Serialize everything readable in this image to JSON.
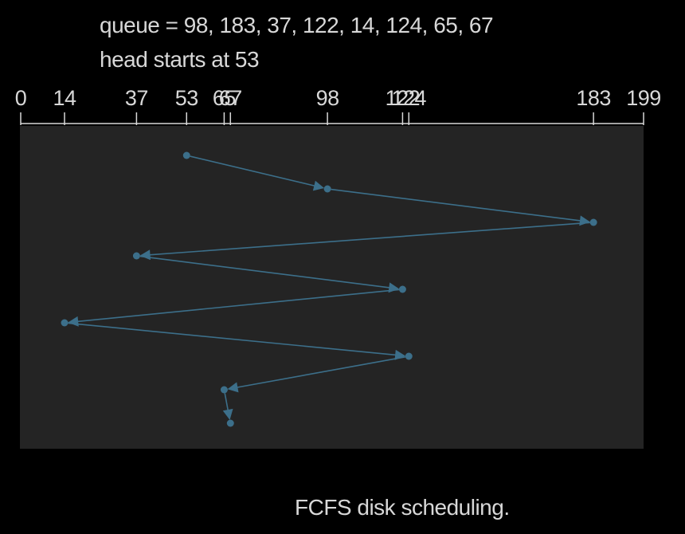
{
  "header": {
    "queue_text": "queue = 98, 183, 37, 122, 14, 124, 65, 67",
    "head_text": "head starts at 53"
  },
  "caption": "FCFS disk scheduling.",
  "colors": {
    "background": "#000000",
    "panel": "#242424",
    "text": "#d8d8d8",
    "path": "#3c6f8a"
  },
  "chart_data": {
    "type": "line",
    "x_axis": {
      "min": 0,
      "max": 199,
      "tick_values": [
        0,
        14,
        37,
        53,
        65,
        67,
        98,
        122,
        124,
        183,
        199
      ],
      "tick_labels": [
        "0",
        "14",
        "37",
        "53",
        "65",
        "67",
        "98",
        "122",
        "124",
        "183",
        "199"
      ]
    },
    "head_start": 53,
    "queue": [
      98,
      183,
      37,
      122,
      14,
      124,
      65,
      67
    ],
    "path": [
      53,
      98,
      183,
      37,
      122,
      14,
      124,
      65,
      67
    ]
  }
}
